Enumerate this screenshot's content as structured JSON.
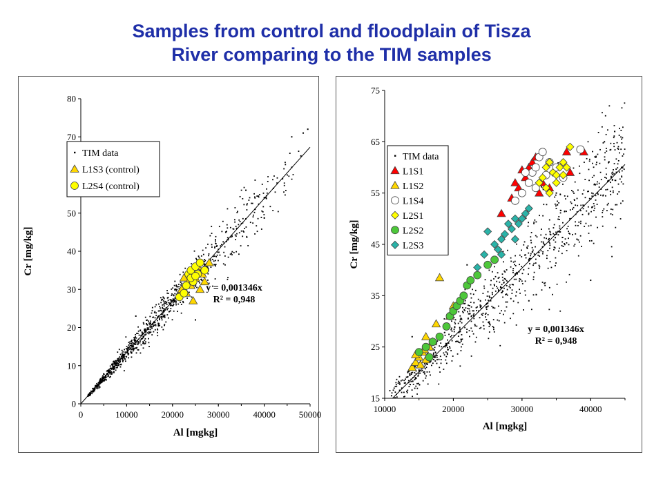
{
  "title": {
    "line1": "Samples from control and floodplain of Tisza",
    "line2": "River comparing to the TIM samples"
  },
  "colors": {
    "title": "#1f2fa8"
  },
  "chart_data": [
    {
      "type": "scatter",
      "title": "",
      "xlabel": "Al [mgkg]",
      "ylabel": "Cr [mg/kg]",
      "xlim": [
        0,
        50000
      ],
      "ylim": [
        0,
        80
      ],
      "xticks": [
        0,
        10000,
        20000,
        30000,
        40000,
        50000
      ],
      "yticks": [
        0,
        10,
        20,
        30,
        40,
        50,
        60,
        70,
        80
      ],
      "grid": false,
      "legend": "top-left",
      "trendline": {
        "slope": 0.001346,
        "x_range": [
          0,
          50000
        ]
      },
      "annotation": {
        "equation": "y = 0,001346x",
        "r2": "R² = 0,948"
      },
      "series": [
        {
          "name": "TIM data",
          "marker": "dot",
          "color": "#000000",
          "points": [
            [
              3000,
              4
            ],
            [
              5000,
              7
            ],
            [
              7000,
              9.5
            ],
            [
              9000,
              12
            ],
            [
              10000,
              13.5
            ],
            [
              12000,
              16
            ],
            [
              14000,
              18.8
            ],
            [
              16000,
              21.5
            ],
            [
              18000,
              24
            ],
            [
              20000,
              27
            ],
            [
              22000,
              29.5
            ],
            [
              24000,
              32.5
            ],
            [
              26000,
              35
            ],
            [
              28000,
              37.5
            ],
            [
              30000,
              40.5
            ],
            [
              32000,
              43
            ],
            [
              34000,
              46
            ],
            [
              36000,
              48.5
            ],
            [
              38000,
              51
            ],
            [
              40000,
              54
            ],
            [
              42000,
              56.5
            ],
            [
              44000,
              59
            ],
            [
              46000,
              62
            ],
            [
              48000,
              65
            ],
            [
              49500,
              72
            ],
            [
              48500,
              71
            ],
            [
              46000,
              70
            ],
            [
              36000,
              56
            ],
            [
              25000,
              22
            ],
            [
              12000,
              23
            ]
          ]
        },
        {
          "name": "L1S3 (control)",
          "marker": "triangle",
          "color": "#ffd700",
          "points": [
            [
              22000,
              30
            ],
            [
              23000,
              29
            ],
            [
              24000,
              31
            ],
            [
              25000,
              33
            ],
            [
              26000,
              30
            ],
            [
              27000,
              32
            ],
            [
              28000,
              37
            ],
            [
              24500,
              27
            ],
            [
              22500,
              33
            ],
            [
              25500,
              36
            ],
            [
              23500,
              32
            ],
            [
              26500,
              34
            ]
          ]
        },
        {
          "name": "L2S4 (control)",
          "marker": "circle",
          "color": "#ffff00",
          "points": [
            [
              21500,
              28
            ],
            [
              22500,
              29
            ],
            [
              23000,
              31
            ],
            [
              23500,
              34
            ],
            [
              24000,
              35
            ],
            [
              24500,
              32
            ],
            [
              25000,
              36
            ],
            [
              25500,
              34
            ],
            [
              26000,
              37
            ],
            [
              27000,
              35
            ],
            [
              24000,
              33
            ],
            [
              25000,
              33.5
            ]
          ]
        }
      ]
    },
    {
      "type": "scatter",
      "title": "",
      "xlabel": "Al [mgkg]",
      "ylabel": "Cr [mg/kg]",
      "xlim": [
        10000,
        45000
      ],
      "ylim": [
        15,
        75
      ],
      "xticks": [
        10000,
        20000,
        30000,
        40000
      ],
      "yticks": [
        15,
        25,
        35,
        45,
        55,
        65,
        75
      ],
      "grid": false,
      "legend": "top-left",
      "trendline": {
        "slope": 0.001346,
        "x_range": [
          11000,
          45000
        ]
      },
      "annotation": {
        "equation": "y = 0,001346x",
        "r2": "R² = 0,948"
      },
      "series": [
        {
          "name": "TIM data",
          "marker": "dot",
          "color": "#000000",
          "points": [
            [
              11000,
              15.5
            ],
            [
              13000,
              18
            ],
            [
              15000,
              20.5
            ],
            [
              17000,
              23
            ],
            [
              19000,
              25.5
            ],
            [
              21000,
              28
            ],
            [
              23000,
              31
            ],
            [
              25000,
              33.5
            ],
            [
              27000,
              36.5
            ],
            [
              29000,
              39
            ],
            [
              31000,
              42
            ],
            [
              33000,
              44.5
            ],
            [
              35000,
              47
            ],
            [
              37000,
              50
            ],
            [
              39000,
              52.5
            ],
            [
              41000,
              55
            ],
            [
              43000,
              58
            ],
            [
              44500,
              60
            ],
            [
              43500,
              67
            ],
            [
              42000,
              65
            ],
            [
              31000,
              34
            ],
            [
              40000,
              38
            ],
            [
              22000,
              41
            ],
            [
              14000,
              27
            ],
            [
              35000,
              55
            ],
            [
              38000,
              46
            ]
          ]
        },
        {
          "name": "L1S1",
          "marker": "triangle",
          "color": "#ff0000",
          "points": [
            [
              27000,
              51
            ],
            [
              28500,
              54
            ],
            [
              29000,
              57
            ],
            [
              29500,
              56
            ],
            [
              30500,
              58
            ],
            [
              31000,
              60
            ],
            [
              31500,
              61
            ],
            [
              32000,
              62
            ],
            [
              33000,
              57
            ],
            [
              34000,
              56
            ],
            [
              36500,
              63
            ],
            [
              37000,
              59
            ],
            [
              39000,
              63
            ],
            [
              32500,
              55
            ],
            [
              30000,
              59.5
            ]
          ]
        },
        {
          "name": "L1S2",
          "marker": "triangle",
          "color": "#ffd700",
          "points": [
            [
              14000,
              21
            ],
            [
              14500,
              22
            ],
            [
              15000,
              23
            ],
            [
              15500,
              24
            ],
            [
              16000,
              22.5
            ],
            [
              16500,
              25
            ],
            [
              17000,
              26
            ],
            [
              14500,
              23.5
            ],
            [
              15200,
              21.5
            ],
            [
              17500,
              29.5
            ],
            [
              18000,
              38.5
            ],
            [
              16000,
              27
            ],
            [
              19500,
              31
            ],
            [
              20000,
              33
            ],
            [
              15800,
              24.5
            ]
          ]
        },
        {
          "name": "L1S4",
          "marker": "circle",
          "color": "#ffffff",
          "points": [
            [
              29000,
              53.5
            ],
            [
              30000,
              55
            ],
            [
              31000,
              57
            ],
            [
              31500,
              59
            ],
            [
              32000,
              60
            ],
            [
              32500,
              62
            ],
            [
              33000,
              63
            ],
            [
              34000,
              61
            ],
            [
              35000,
              60
            ],
            [
              36000,
              58
            ],
            [
              38500,
              63.5
            ],
            [
              32000,
              56
            ],
            [
              30500,
              59
            ],
            [
              33500,
              58.5
            ]
          ]
        },
        {
          "name": "L2S1",
          "marker": "diamond",
          "color": "#ffff00",
          "points": [
            [
              32500,
              57
            ],
            [
              33000,
              58
            ],
            [
              33500,
              60
            ],
            [
              34000,
              61
            ],
            [
              34500,
              59
            ],
            [
              35000,
              57
            ],
            [
              35500,
              60
            ],
            [
              36000,
              61
            ],
            [
              36500,
              60
            ],
            [
              37000,
              64
            ],
            [
              34000,
              55
            ],
            [
              35000,
              58.5
            ],
            [
              33500,
              56
            ],
            [
              36000,
              58.5
            ]
          ]
        },
        {
          "name": "L2S2",
          "marker": "circle",
          "color": "#4dc73a",
          "points": [
            [
              15000,
              24
            ],
            [
              16000,
              25
            ],
            [
              17000,
              26
            ],
            [
              18000,
              27
            ],
            [
              19000,
              29
            ],
            [
              19500,
              31
            ],
            [
              20000,
              32
            ],
            [
              20500,
              33
            ],
            [
              21000,
              34
            ],
            [
              21500,
              35
            ],
            [
              22000,
              37
            ],
            [
              22500,
              38
            ],
            [
              23500,
              39
            ],
            [
              25000,
              41
            ],
            [
              26000,
              42
            ],
            [
              16500,
              23
            ]
          ]
        },
        {
          "name": "L2S3",
          "marker": "diamond",
          "color": "#2ab3a8",
          "points": [
            [
              23500,
              40.5
            ],
            [
              24500,
              43
            ],
            [
              25000,
              47.5
            ],
            [
              26000,
              45
            ],
            [
              26500,
              44
            ],
            [
              27000,
              46
            ],
            [
              27500,
              47
            ],
            [
              28000,
              49
            ],
            [
              28500,
              48
            ],
            [
              29000,
              50
            ],
            [
              29500,
              49
            ],
            [
              30000,
              50
            ],
            [
              30500,
              51
            ],
            [
              31000,
              52
            ],
            [
              27000,
              43
            ],
            [
              29000,
              46
            ]
          ]
        }
      ]
    }
  ]
}
